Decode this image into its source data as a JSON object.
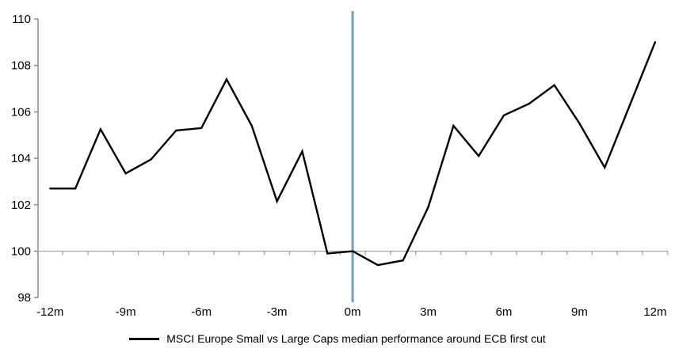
{
  "chart_data": {
    "type": "line",
    "title": "",
    "xlabel": "",
    "ylabel": "",
    "x_months": [
      -12,
      -11,
      -10,
      -9,
      -8,
      -7,
      -6,
      -5,
      -4,
      -3,
      -2,
      -1,
      0,
      1,
      2,
      3,
      4,
      5,
      6,
      7,
      8,
      9,
      10,
      11,
      12
    ],
    "series": [
      {
        "name": "MSCI Europe Small vs Large Caps median performance around ECB first cut",
        "color": "#000000",
        "values": [
          102.7,
          102.7,
          105.25,
          103.35,
          103.95,
          105.2,
          105.3,
          107.4,
          105.4,
          102.15,
          104.3,
          99.9,
          100.0,
          99.4,
          99.6,
          101.9,
          105.4,
          104.1,
          105.85,
          106.35,
          107.15,
          105.5,
          103.6,
          106.3,
          109.0
        ]
      }
    ],
    "ylim": [
      98,
      110
    ],
    "y_ticks": [
      98,
      100,
      102,
      104,
      106,
      108,
      110
    ],
    "x_tick_months": [
      -12,
      -9,
      -6,
      -3,
      0,
      3,
      6,
      9,
      12
    ],
    "x_tick_labels": [
      "-12m",
      "-9m",
      "-6m",
      "-3m",
      "0m",
      "3m",
      "6m",
      "9m",
      "12m"
    ],
    "event_line": {
      "x_month": 0,
      "color": "#6E9FCB"
    },
    "baseline_value": 100,
    "grid": false,
    "legend_position": "bottom-center",
    "colors": {
      "value_axis": "#8C8C8C",
      "category_axis": "#A6A6A6",
      "tick_label": "#000000"
    }
  },
  "legend": {
    "series_label": "MSCI Europe Small vs Large Caps median performance around ECB first cut"
  }
}
